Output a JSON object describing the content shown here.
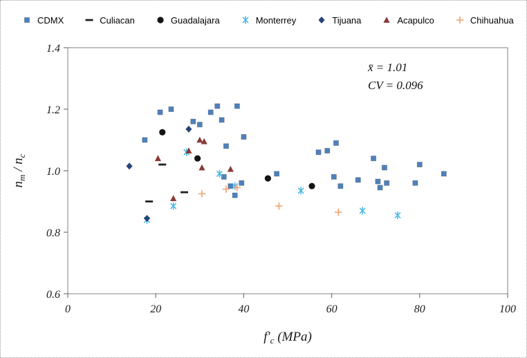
{
  "accent_colors": {
    "frame": "#808080",
    "tick": "#595959",
    "text": "#1a1a1a"
  },
  "annotation": {
    "line1": "x̄ = 1.01",
    "line2": "CV = 0.096"
  },
  "chart_data": {
    "type": "scatter",
    "title": "",
    "xlabel": "f′c (MPa)",
    "ylabel": "nm / nc",
    "xlabel_parts": [
      {
        "t": "f′"
      },
      {
        "t": "c",
        "sub": true
      },
      {
        "t": " (MPa)"
      }
    ],
    "ylabel_parts": [
      {
        "t": "n"
      },
      {
        "t": "m",
        "sub": true
      },
      {
        "t": " / "
      },
      {
        "t": "n"
      },
      {
        "t": "c",
        "sub": true
      }
    ],
    "xlim": [
      0,
      100
    ],
    "ylim": [
      0.6,
      1.4
    ],
    "xticks": [
      0,
      20,
      40,
      60,
      80,
      100
    ],
    "xtick_labels": [
      "0",
      "20",
      "40",
      "60",
      "80",
      "100"
    ],
    "yticks": [
      0.6,
      0.8,
      1.0,
      1.2,
      1.4
    ],
    "ytick_labels": [
      "0.6",
      "0.8",
      "1.0",
      "1.2",
      "1.4"
    ],
    "grid": false,
    "legend_position": "top",
    "mean": 1.01,
    "cv": 0.096,
    "series": [
      {
        "name": "CDMX",
        "marker": "square",
        "color": "#4E81BD",
        "points": [
          [
            17.5,
            1.1
          ],
          [
            21,
            1.19
          ],
          [
            23.5,
            1.2
          ],
          [
            28.5,
            1.16
          ],
          [
            30,
            1.15
          ],
          [
            32.5,
            1.19
          ],
          [
            34,
            1.21
          ],
          [
            35,
            1.165
          ],
          [
            36,
            1.08
          ],
          [
            38.5,
            1.21
          ],
          [
            40,
            1.11
          ],
          [
            35.5,
            0.98
          ],
          [
            37,
            0.95
          ],
          [
            38,
            0.92
          ],
          [
            39.5,
            0.96
          ],
          [
            47.5,
            0.99
          ],
          [
            57,
            1.06
          ],
          [
            59,
            1.065
          ],
          [
            61,
            1.09
          ],
          [
            60.5,
            0.98
          ],
          [
            62,
            0.95
          ],
          [
            66,
            0.97
          ],
          [
            69.5,
            1.04
          ],
          [
            70.5,
            0.965
          ],
          [
            71,
            0.945
          ],
          [
            72,
            1.01
          ],
          [
            72.5,
            0.96
          ],
          [
            79,
            0.96
          ],
          [
            80,
            1.02
          ],
          [
            85.5,
            0.99
          ]
        ]
      },
      {
        "name": "Culiacan",
        "marker": "dash",
        "color": "#1f1f1f",
        "points": [
          [
            18.5,
            0.9
          ],
          [
            21.5,
            1.02
          ],
          [
            26.5,
            0.93
          ]
        ]
      },
      {
        "name": "Guadalajara",
        "marker": "circle",
        "color": "#141414",
        "points": [
          [
            21.5,
            1.125
          ],
          [
            29.5,
            1.04
          ],
          [
            45.5,
            0.975
          ],
          [
            55.5,
            0.95
          ]
        ]
      },
      {
        "name": "Monterrey",
        "marker": "star",
        "color": "#45B7E6",
        "points": [
          [
            18,
            0.84
          ],
          [
            24,
            0.885
          ],
          [
            27,
            1.06
          ],
          [
            34.5,
            0.99
          ],
          [
            38,
            0.95
          ],
          [
            53,
            0.935
          ],
          [
            67,
            0.87
          ],
          [
            75,
            0.855
          ]
        ]
      },
      {
        "name": "Tijuana",
        "marker": "diamond",
        "color": "#264478",
        "points": [
          [
            14,
            1.015
          ],
          [
            18,
            0.845
          ],
          [
            27.5,
            1.135
          ]
        ]
      },
      {
        "name": "Acapulco",
        "marker": "triangle",
        "color": "#8B3A36",
        "points": [
          [
            20.5,
            1.04
          ],
          [
            24,
            0.91
          ],
          [
            27.5,
            1.065
          ],
          [
            30,
            1.1
          ],
          [
            31,
            1.095
          ],
          [
            30.5,
            1.01
          ],
          [
            37,
            1.005
          ]
        ]
      },
      {
        "name": "Chihuahua",
        "marker": "plus",
        "color": "#F0A875",
        "points": [
          [
            30.5,
            0.925
          ],
          [
            36,
            0.94
          ],
          [
            38.5,
            0.945
          ],
          [
            48,
            0.885
          ],
          [
            61.5,
            0.865
          ]
        ]
      }
    ]
  }
}
